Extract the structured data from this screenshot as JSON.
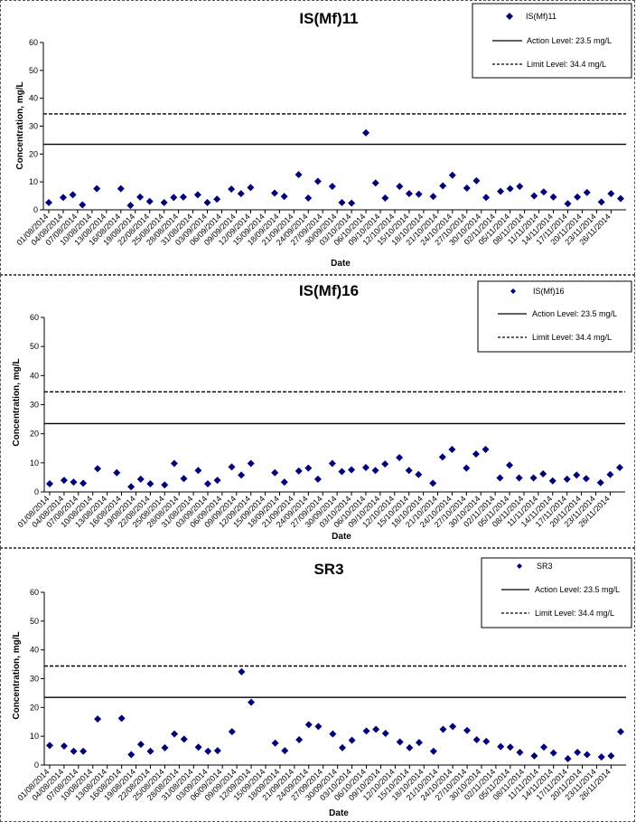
{
  "chart_data": [
    {
      "type": "scatter",
      "title": "IS(Mf)11",
      "xlabel": "Date",
      "ylabel": "Concentration, mg/L",
      "ylim": [
        0,
        60
      ],
      "yticks": [
        "0",
        "10",
        "20",
        "30",
        "40",
        "50",
        "60"
      ],
      "xlim": [
        "2014-08-01",
        "2014-11-28"
      ],
      "xticks": [
        "01/08/2014",
        "04/08/2014",
        "07/08/2014",
        "10/08/2014",
        "13/08/2014",
        "16/08/2014",
        "19/08/2014",
        "22/08/2014",
        "25/08/2014",
        "28/08/2014",
        "31/08/2014",
        "03/09/2014",
        "06/09/2014",
        "09/09/2014",
        "12/09/2014",
        "15/09/2014",
        "18/09/2014",
        "21/09/2014",
        "24/09/2014",
        "27/09/2014",
        "30/09/2014",
        "03/10/2014",
        "06/10/2014",
        "09/10/2014",
        "12/10/2014",
        "15/10/2014",
        "18/10/2014",
        "21/10/2014",
        "24/10/2014",
        "27/10/2014",
        "30/10/2014",
        "02/11/2014",
        "05/11/2014",
        "08/11/2014",
        "11/11/2014",
        "14/11/2014",
        "17/11/2014",
        "20/11/2014",
        "23/11/2014",
        "26/11/2014"
      ],
      "grid": false,
      "legend_position": "top-right",
      "series": [
        {
          "name": "IS(Mf)11",
          "color": "#00007a",
          "marker": "diamond",
          "points": [
            [
              "2014-08-01",
              2.6
            ],
            [
              "2014-08-04",
              4.4
            ],
            [
              "2014-08-06",
              5.4
            ],
            [
              "2014-08-08",
              1.8
            ],
            [
              "2014-08-11",
              7.6
            ],
            [
              "2014-08-16",
              7.6
            ],
            [
              "2014-08-18",
              1.6
            ],
            [
              "2014-08-20",
              4.6
            ],
            [
              "2014-08-22",
              3.0
            ],
            [
              "2014-08-25",
              2.6
            ],
            [
              "2014-08-27",
              4.4
            ],
            [
              "2014-08-29",
              4.6
            ],
            [
              "2014-09-01",
              5.4
            ],
            [
              "2014-09-03",
              2.6
            ],
            [
              "2014-09-05",
              3.8
            ],
            [
              "2014-09-08",
              7.4
            ],
            [
              "2014-09-10",
              5.8
            ],
            [
              "2014-09-12",
              8.0
            ],
            [
              "2014-09-17",
              6.0
            ],
            [
              "2014-09-19",
              4.8
            ],
            [
              "2014-09-22",
              12.6
            ],
            [
              "2014-09-24",
              4.2
            ],
            [
              "2014-09-26",
              10.2
            ],
            [
              "2014-09-29",
              8.4
            ],
            [
              "2014-10-01",
              2.6
            ],
            [
              "2014-10-03",
              2.4
            ],
            [
              "2014-10-06",
              27.6
            ],
            [
              "2014-10-08",
              9.6
            ],
            [
              "2014-10-10",
              4.2
            ],
            [
              "2014-10-13",
              8.4
            ],
            [
              "2014-10-15",
              5.8
            ],
            [
              "2014-10-17",
              5.6
            ],
            [
              "2014-10-20",
              4.8
            ],
            [
              "2014-10-22",
              8.6
            ],
            [
              "2014-10-24",
              12.4
            ],
            [
              "2014-10-27",
              7.8
            ],
            [
              "2014-10-29",
              10.4
            ],
            [
              "2014-10-31",
              4.4
            ],
            [
              "2014-11-03",
              6.6
            ],
            [
              "2014-11-05",
              7.6
            ],
            [
              "2014-11-07",
              8.4
            ],
            [
              "2014-11-10",
              5.0
            ],
            [
              "2014-11-12",
              6.4
            ],
            [
              "2014-11-14",
              4.6
            ],
            [
              "2014-11-17",
              2.2
            ],
            [
              "2014-11-19",
              4.6
            ],
            [
              "2014-11-21",
              6.2
            ],
            [
              "2014-11-24",
              2.8
            ],
            [
              "2014-11-26",
              5.8
            ],
            [
              "2014-11-28",
              4.0
            ]
          ]
        },
        {
          "name": "Action Level: 23.5 mg/L",
          "color": "#000000",
          "style": "solid",
          "y": 23.5
        },
        {
          "name": "Limit Level: 34.4 mg/L",
          "color": "#000000",
          "style": "dashed",
          "y": 34.4
        }
      ]
    },
    {
      "type": "scatter",
      "title": "IS(Mf)16",
      "xlabel": "Date",
      "ylabel": "Concentration, mg/L",
      "ylim": [
        0,
        60
      ],
      "yticks": [
        "0",
        "10",
        "20",
        "30",
        "40",
        "50",
        "60"
      ],
      "xlim": [
        "2014-08-01",
        "2014-11-28"
      ],
      "xticks": [
        "01/08/2014",
        "04/08/2014",
        "07/08/2014",
        "10/08/2014",
        "13/08/2014",
        "16/08/2014",
        "19/08/2014",
        "22/08/2014",
        "25/08/2014",
        "28/08/2014",
        "31/08/2014",
        "03/09/2014",
        "06/09/2014",
        "09/09/2014",
        "12/09/2014",
        "15/09/2014",
        "18/09/2014",
        "21/09/2014",
        "24/09/2014",
        "27/09/2014",
        "30/09/2014",
        "03/10/2014",
        "06/10/2014",
        "09/10/2014",
        "12/10/2014",
        "15/10/2014",
        "18/10/2014",
        "21/10/2014",
        "24/10/2014",
        "27/10/2014",
        "30/10/2014",
        "02/11/2014",
        "05/11/2014",
        "08/11/2014",
        "11/11/2014",
        "14/11/2014",
        "17/11/2014",
        "20/11/2014",
        "23/11/2014",
        "26/11/2014"
      ],
      "grid": false,
      "legend_position": "top-right",
      "series": [
        {
          "name": "IS(Mf)16",
          "color": "#00007a",
          "marker": "diamond",
          "points": [
            [
              "2014-08-01",
              2.8
            ],
            [
              "2014-08-04",
              4.0
            ],
            [
              "2014-08-06",
              3.4
            ],
            [
              "2014-08-08",
              3.0
            ],
            [
              "2014-08-11",
              8.0
            ],
            [
              "2014-08-15",
              6.6
            ],
            [
              "2014-08-18",
              1.8
            ],
            [
              "2014-08-20",
              4.4
            ],
            [
              "2014-08-22",
              2.8
            ],
            [
              "2014-08-25",
              2.4
            ],
            [
              "2014-08-27",
              9.8
            ],
            [
              "2014-08-29",
              4.6
            ],
            [
              "2014-09-01",
              7.4
            ],
            [
              "2014-09-03",
              2.8
            ],
            [
              "2014-09-05",
              4.0
            ],
            [
              "2014-09-08",
              8.6
            ],
            [
              "2014-09-10",
              5.8
            ],
            [
              "2014-09-12",
              9.8
            ],
            [
              "2014-09-17",
              6.6
            ],
            [
              "2014-09-19",
              3.4
            ],
            [
              "2014-09-22",
              7.2
            ],
            [
              "2014-09-24",
              8.2
            ],
            [
              "2014-09-26",
              4.4
            ],
            [
              "2014-09-29",
              9.8
            ],
            [
              "2014-10-01",
              7.0
            ],
            [
              "2014-10-03",
              7.6
            ],
            [
              "2014-10-06",
              8.4
            ],
            [
              "2014-10-08",
              7.4
            ],
            [
              "2014-10-10",
              9.6
            ],
            [
              "2014-10-13",
              11.8
            ],
            [
              "2014-10-15",
              7.4
            ],
            [
              "2014-10-17",
              6.0
            ],
            [
              "2014-10-20",
              3.0
            ],
            [
              "2014-10-22",
              12.0
            ],
            [
              "2014-10-24",
              14.6
            ],
            [
              "2014-10-27",
              8.2
            ],
            [
              "2014-10-29",
              13.0
            ],
            [
              "2014-10-31",
              14.6
            ],
            [
              "2014-11-03",
              4.8
            ],
            [
              "2014-11-05",
              9.2
            ],
            [
              "2014-11-07",
              4.8
            ],
            [
              "2014-11-10",
              4.8
            ],
            [
              "2014-11-12",
              6.2
            ],
            [
              "2014-11-14",
              3.8
            ],
            [
              "2014-11-17",
              4.4
            ],
            [
              "2014-11-19",
              5.8
            ],
            [
              "2014-11-21",
              4.6
            ],
            [
              "2014-11-24",
              3.2
            ],
            [
              "2014-11-26",
              6.0
            ],
            [
              "2014-11-28",
              8.4
            ]
          ]
        },
        {
          "name": "Action Level: 23.5 mg/L",
          "color": "#000000",
          "style": "solid",
          "y": 23.5
        },
        {
          "name": "Limit Level: 34.4 mg/L",
          "color": "#000000",
          "style": "dashed",
          "y": 34.4
        }
      ]
    },
    {
      "type": "scatter",
      "title": "SR3",
      "xlabel": "Date",
      "ylabel": "Concentration, mg/L",
      "ylim": [
        0,
        60
      ],
      "yticks": [
        "0",
        "10",
        "20",
        "30",
        "40",
        "50",
        "60"
      ],
      "xlim": [
        "2014-08-01",
        "2014-11-28"
      ],
      "xticks": [
        "01/08/2014",
        "04/08/2014",
        "07/08/2014",
        "10/08/2014",
        "13/08/2014",
        "16/08/2014",
        "19/08/2014",
        "22/08/2014",
        "25/08/2014",
        "28/08/2014",
        "31/08/2014",
        "03/09/2014",
        "06/09/2014",
        "09/09/2014",
        "12/09/2014",
        "15/09/2014",
        "18/09/2014",
        "21/09/2014",
        "24/09/2014",
        "27/09/2014",
        "30/09/2014",
        "03/10/2014",
        "06/10/2014",
        "09/10/2014",
        "12/10/2014",
        "15/10/2014",
        "18/10/2014",
        "21/10/2014",
        "24/10/2014",
        "27/10/2014",
        "30/10/2014",
        "02/11/2014",
        "05/11/2014",
        "08/11/2014",
        "11/11/2014",
        "14/11/2014",
        "17/11/2014",
        "20/11/2014",
        "23/11/2014",
        "26/11/2014"
      ],
      "grid": false,
      "legend_position": "top-right",
      "series": [
        {
          "name": "SR3",
          "color": "#00007a",
          "marker": "diamond",
          "points": [
            [
              "2014-08-01",
              6.8
            ],
            [
              "2014-08-04",
              6.6
            ],
            [
              "2014-08-06",
              4.8
            ],
            [
              "2014-08-08",
              4.8
            ],
            [
              "2014-08-11",
              16.0
            ],
            [
              "2014-08-16",
              16.2
            ],
            [
              "2014-08-18",
              3.6
            ],
            [
              "2014-08-20",
              7.2
            ],
            [
              "2014-08-22",
              4.8
            ],
            [
              "2014-08-25",
              6.0
            ],
            [
              "2014-08-27",
              10.8
            ],
            [
              "2014-08-29",
              9.0
            ],
            [
              "2014-09-01",
              6.2
            ],
            [
              "2014-09-03",
              4.8
            ],
            [
              "2014-09-05",
              5.0
            ],
            [
              "2014-09-08",
              11.6
            ],
            [
              "2014-09-10",
              32.4
            ],
            [
              "2014-09-12",
              21.8
            ],
            [
              "2014-09-17",
              7.6
            ],
            [
              "2014-09-19",
              5.0
            ],
            [
              "2014-09-22",
              8.8
            ],
            [
              "2014-09-24",
              14.0
            ],
            [
              "2014-09-26",
              13.4
            ],
            [
              "2014-09-29",
              10.8
            ],
            [
              "2014-10-01",
              6.0
            ],
            [
              "2014-10-03",
              8.6
            ],
            [
              "2014-10-06",
              11.8
            ],
            [
              "2014-10-08",
              12.4
            ],
            [
              "2014-10-10",
              11.0
            ],
            [
              "2014-10-13",
              8.0
            ],
            [
              "2014-10-15",
              6.0
            ],
            [
              "2014-10-17",
              7.8
            ],
            [
              "2014-10-20",
              4.8
            ],
            [
              "2014-10-22",
              12.4
            ],
            [
              "2014-10-24",
              13.4
            ],
            [
              "2014-10-27",
              12.0
            ],
            [
              "2014-10-29",
              8.8
            ],
            [
              "2014-10-31",
              8.2
            ],
            [
              "2014-11-03",
              6.4
            ],
            [
              "2014-11-05",
              6.2
            ],
            [
              "2014-11-07",
              4.4
            ],
            [
              "2014-11-10",
              3.2
            ],
            [
              "2014-11-12",
              6.2
            ],
            [
              "2014-11-14",
              4.2
            ],
            [
              "2014-11-17",
              2.2
            ],
            [
              "2014-11-19",
              4.4
            ],
            [
              "2014-11-21",
              3.6
            ],
            [
              "2014-11-24",
              2.8
            ],
            [
              "2014-11-26",
              3.2
            ],
            [
              "2014-11-28",
              11.6
            ]
          ]
        },
        {
          "name": "Action Level: 23.5 mg/L",
          "color": "#000000",
          "style": "solid",
          "y": 23.5
        },
        {
          "name": "Limit Level: 34.4 mg/L",
          "color": "#000000",
          "style": "dashed",
          "y": 34.4
        }
      ]
    }
  ]
}
